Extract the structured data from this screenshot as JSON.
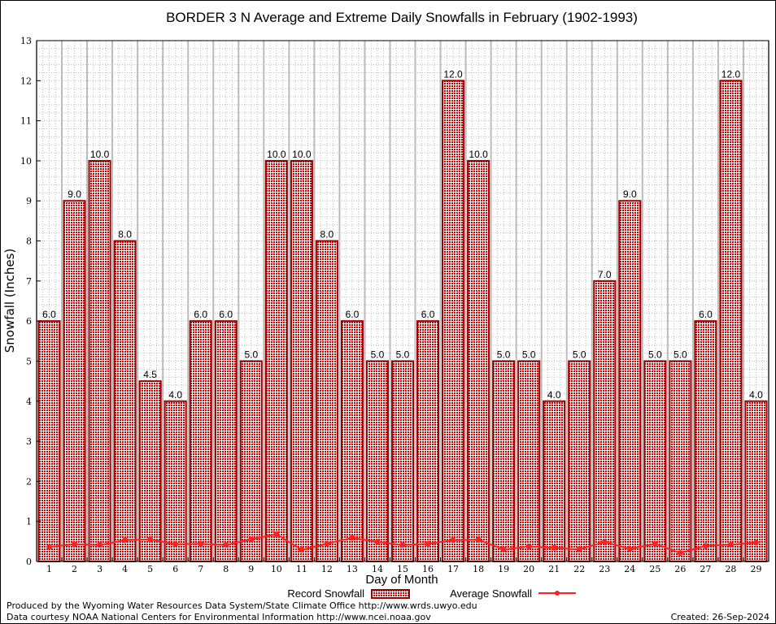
{
  "chart_data": {
    "type": "bar",
    "title": "BORDER 3 N Average and Extreme Daily Snowfalls in February (1902-1993)",
    "xlabel": "Day of Month",
    "ylabel": "Snowfall (Inches)",
    "ylim": [
      0,
      13
    ],
    "yticks": [
      0,
      1,
      2,
      3,
      4,
      5,
      6,
      7,
      8,
      9,
      10,
      11,
      12,
      13
    ],
    "grid": true,
    "legend_placement": "bottom-center",
    "categories": [
      "1",
      "2",
      "3",
      "4",
      "5",
      "6",
      "7",
      "8",
      "9",
      "10",
      "11",
      "12",
      "13",
      "14",
      "15",
      "16",
      "17",
      "18",
      "19",
      "20",
      "21",
      "22",
      "23",
      "24",
      "25",
      "26",
      "27",
      "28",
      "29"
    ],
    "series": [
      {
        "name": "Record Snowfall",
        "type": "bar",
        "color": "#cc0000",
        "values": [
          6.0,
          9.0,
          10.0,
          8.0,
          4.5,
          4.0,
          6.0,
          6.0,
          5.0,
          10.0,
          10.0,
          8.0,
          6.0,
          5.0,
          5.0,
          6.0,
          12.0,
          10.0,
          5.0,
          5.0,
          4.0,
          5.0,
          7.0,
          9.0,
          5.0,
          5.0,
          6.0,
          12.0,
          4.0
        ],
        "labels": [
          "6.0",
          "9.0",
          "10.0",
          "8.0",
          "4.5",
          "4.0",
          "6.0",
          "6.0",
          "5.0",
          "10.0",
          "10.0",
          "8.0",
          "6.0",
          "5.0",
          "5.0",
          "6.0",
          "12.0",
          "10.0",
          "5.0",
          "5.0",
          "4.0",
          "5.0",
          "7.0",
          "9.0",
          "5.0",
          "5.0",
          "6.0",
          "12.0",
          "4.0"
        ]
      },
      {
        "name": "Average Snowfall",
        "type": "line",
        "color": "#ff2020",
        "values": [
          0.36,
          0.43,
          0.41,
          0.53,
          0.55,
          0.43,
          0.44,
          0.41,
          0.55,
          0.68,
          0.29,
          0.44,
          0.59,
          0.49,
          0.41,
          0.44,
          0.53,
          0.54,
          0.3,
          0.37,
          0.34,
          0.3,
          0.49,
          0.31,
          0.44,
          0.21,
          0.39,
          0.42,
          0.47
        ]
      }
    ]
  },
  "footer": {
    "produced_by": "Produced by the Wyoming Water Resources Data System/State Climate Office http://www.wrds.uwyo.edu",
    "data_courtesy": "Data courtesy NOAA National Centers for Environmental Information http://www.ncei.noaa.gov",
    "created": "Created:  26-Sep-2024"
  }
}
